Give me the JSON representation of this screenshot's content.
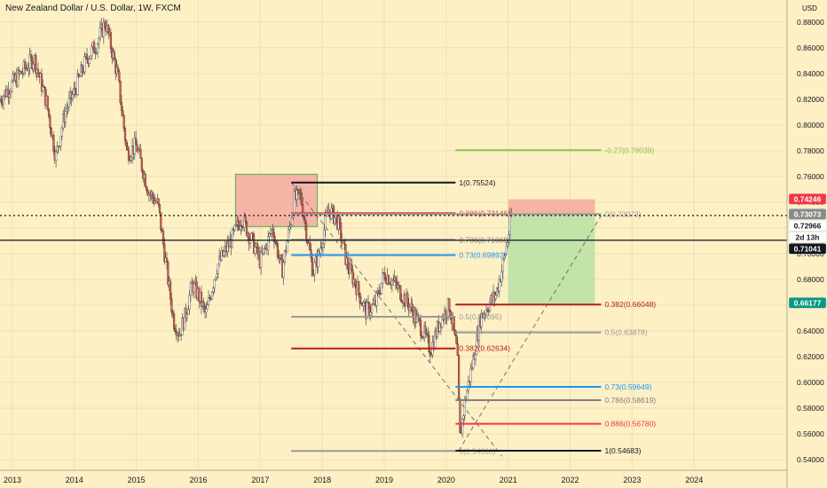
{
  "header": {
    "title": "New Zealand Dollar / U.S. Dollar, 1W, FXCM",
    "currency": "USD"
  },
  "chart_data": {
    "type": "candlestick",
    "symbol": "NZDUSD",
    "interval": "1W",
    "source": "FXCM",
    "ylim": [
      0.5317,
      0.8971
    ],
    "xlim": [
      2012.8,
      2025.5
    ],
    "price_axis_ticks": [
      "0.88000",
      "0.86000",
      "0.84000",
      "0.82000",
      "0.80000",
      "0.78000",
      "0.76000",
      "0.74000",
      "0.72000",
      "0.70000",
      "0.68000",
      "0.66000",
      "0.64000",
      "0.62000",
      "0.60000",
      "0.58000",
      "0.56000",
      "0.54000"
    ],
    "time_axis_ticks": [
      "2013",
      "2014",
      "2015",
      "2016",
      "2017",
      "2018",
      "2019",
      "2020",
      "2021",
      "2022",
      "2023",
      "2024"
    ],
    "price_badges": [
      {
        "label": "0.74246",
        "value": 0.74246,
        "bg": "#f23645",
        "fg": "#ffffff"
      },
      {
        "label": "0.73073",
        "value": 0.73073,
        "bg": "#8a8a8a",
        "fg": "#ffffff"
      },
      {
        "label": "0.72966",
        "value": 0.72966,
        "bg": "#ffffff",
        "fg": "#131722"
      },
      {
        "label": "2d 13h",
        "value": 0.72,
        "bg": "#ffffff",
        "fg": "#131722"
      },
      {
        "label": "0.71041",
        "value": 0.71041,
        "bg": "#131722",
        "fg": "#ffffff"
      },
      {
        "label": "0.66177",
        "value": 0.66177,
        "bg": "#089981",
        "fg": "#ffffff"
      }
    ],
    "horizontal_lines": [
      {
        "value": 0.72966,
        "style": "dotted",
        "color": "#131722"
      },
      {
        "value": 0.71041,
        "style": "solid",
        "color": "#131722"
      }
    ],
    "fib_levels": [
      {
        "label": "-0.27(0.78039)",
        "value": 0.78039,
        "x_start": 2020.15,
        "x_end": 2022.5,
        "color": "#8bc34a"
      },
      {
        "label": "1(0.75524)",
        "value": 0.75524,
        "x_start": 2017.5,
        "x_end": 2020.15,
        "color": "#131722"
      },
      {
        "label": "0.886(0.73146)",
        "value": 0.73146,
        "x_start": 2017.5,
        "x_end": 2020.15,
        "color": "#f23645"
      },
      {
        "label": "0(0.73073)",
        "value": 0.73073,
        "x_start": 2017.5,
        "x_end": 2022.5,
        "color": "#9a9a9a"
      },
      {
        "label": "0.786(0.71068)",
        "value": 0.71068,
        "x_start": 2017.5,
        "x_end": 2020.15,
        "color": "#808080"
      },
      {
        "label": "0.73(0.69892)",
        "value": 0.69892,
        "x_start": 2017.5,
        "x_end": 2020.15,
        "color": "#2196f3"
      },
      {
        "label": "0.382(0.66048)",
        "value": 0.66048,
        "x_start": 2020.15,
        "x_end": 2022.5,
        "color": "#b71c1c"
      },
      {
        "label": "0.5(0.65095)",
        "value": 0.65095,
        "x_start": 2017.5,
        "x_end": 2020.15,
        "color": "#9a9a9a"
      },
      {
        "label": "0.5(0.63878)",
        "value": 0.63878,
        "x_start": 2020.15,
        "x_end": 2022.5,
        "color": "#9a9a9a"
      },
      {
        "label": "0.382(0.62634)",
        "value": 0.62634,
        "x_start": 2017.5,
        "x_end": 2020.15,
        "color": "#b71c1c"
      },
      {
        "label": "0.73(0.59649)",
        "value": 0.59649,
        "x_start": 2020.15,
        "x_end": 2022.5,
        "color": "#2196f3"
      },
      {
        "label": "0.786(0.58619)",
        "value": 0.58619,
        "x_start": 2020.15,
        "x_end": 2022.5,
        "color": "#808080"
      },
      {
        "label": "0.886(0.56780)",
        "value": 0.5678,
        "x_start": 2020.15,
        "x_end": 2022.5,
        "color": "#f23645"
      },
      {
        "label": "0(0.54666)",
        "value": 0.54666,
        "x_start": 2017.5,
        "x_end": 2020.15,
        "color": "#9a9a9a"
      },
      {
        "label": "1(0.54683)",
        "value": 0.54683,
        "x_start": 2020.15,
        "x_end": 2022.5,
        "color": "#131722"
      }
    ],
    "zones": [
      {
        "x": [
          2016.6,
          2017.92
        ],
        "y": [
          0.7211,
          0.7617
        ],
        "fill": "#f4a9a0",
        "stroke": "#4caf50"
      },
      {
        "x": [
          2021.0,
          2022.4
        ],
        "y": [
          0.7303,
          0.7422
        ],
        "fill": "#f4a9a0",
        "stroke": "none"
      },
      {
        "x": [
          2021.0,
          2022.4
        ],
        "y": [
          0.6613,
          0.7303
        ],
        "fill": "#b9e0a5",
        "stroke": "none"
      }
    ],
    "trend_lines": [
      {
        "x": [
          2017.5,
          2020.9
        ],
        "y": [
          0.7552,
          0.5425
        ],
        "style": "dashed"
      },
      {
        "x": [
          2020.2,
          2022.5
        ],
        "y": [
          0.5468,
          0.7295
        ],
        "style": "dashed"
      }
    ],
    "price_path": [
      [
        2012.8,
        0.82
      ],
      [
        2013.1,
        0.838
      ],
      [
        2013.35,
        0.852
      ],
      [
        2013.55,
        0.818
      ],
      [
        2013.7,
        0.775
      ],
      [
        2013.85,
        0.81
      ],
      [
        2014.0,
        0.826
      ],
      [
        2014.2,
        0.852
      ],
      [
        2014.35,
        0.862
      ],
      [
        2014.5,
        0.88
      ],
      [
        2014.7,
        0.838
      ],
      [
        2014.85,
        0.778
      ],
      [
        2015.0,
        0.784
      ],
      [
        2015.2,
        0.748
      ],
      [
        2015.35,
        0.738
      ],
      [
        2015.45,
        0.702
      ],
      [
        2015.6,
        0.648
      ],
      [
        2015.7,
        0.638
      ],
      [
        2015.8,
        0.654
      ],
      [
        2015.9,
        0.676
      ],
      [
        2016.0,
        0.668
      ],
      [
        2016.12,
        0.652
      ],
      [
        2016.3,
        0.69
      ],
      [
        2016.55,
        0.712
      ],
      [
        2016.7,
        0.728
      ],
      [
        2016.9,
        0.706
      ],
      [
        2017.0,
        0.694
      ],
      [
        2017.2,
        0.72
      ],
      [
        2017.35,
        0.686
      ],
      [
        2017.55,
        0.742
      ],
      [
        2017.65,
        0.745
      ],
      [
        2017.85,
        0.686
      ],
      [
        2017.95,
        0.7
      ],
      [
        2018.1,
        0.735
      ],
      [
        2018.25,
        0.725
      ],
      [
        2018.4,
        0.692
      ],
      [
        2018.55,
        0.675
      ],
      [
        2018.7,
        0.655
      ],
      [
        2018.85,
        0.66
      ],
      [
        2019.0,
        0.685
      ],
      [
        2019.15,
        0.678
      ],
      [
        2019.4,
        0.66
      ],
      [
        2019.6,
        0.642
      ],
      [
        2019.75,
        0.625
      ],
      [
        2019.9,
        0.648
      ],
      [
        2020.05,
        0.66
      ],
      [
        2020.18,
        0.622
      ],
      [
        2020.22,
        0.556
      ],
      [
        2020.3,
        0.584
      ],
      [
        2020.45,
        0.622
      ],
      [
        2020.55,
        0.65
      ],
      [
        2020.7,
        0.662
      ],
      [
        2020.8,
        0.668
      ],
      [
        2020.9,
        0.688
      ],
      [
        2021.0,
        0.712
      ],
      [
        2021.05,
        0.7297
      ]
    ]
  }
}
